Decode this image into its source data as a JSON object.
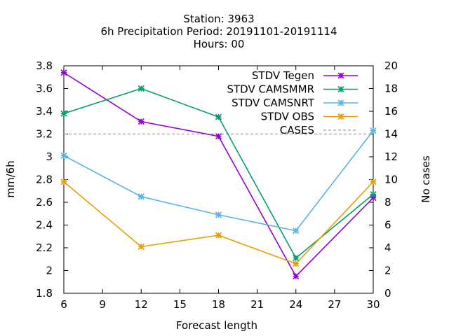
{
  "chart_data": {
    "type": "line",
    "title_lines": [
      "Station:      3963",
      "6h Precipitation   Period: 20191101-20191114",
      "Hours:  00"
    ],
    "xlabel": "Forecast length",
    "ylabel": "mm/6h",
    "y2label": "No cases",
    "x_ticks": [
      6,
      9,
      12,
      15,
      18,
      21,
      24,
      27,
      30
    ],
    "y_ticks": [
      "1.8",
      "2",
      "2.2",
      "2.4",
      "2.6",
      "2.8",
      "3",
      "3.2",
      "3.4",
      "3.6",
      "3.8"
    ],
    "y2_ticks": [
      "0",
      "2",
      "4",
      "6",
      "8",
      "10",
      "12",
      "14",
      "16",
      "18",
      "20"
    ],
    "xlim": [
      6,
      30
    ],
    "ylim": [
      1.8,
      3.8
    ],
    "y2lim": [
      0,
      20
    ],
    "x": [
      6,
      12,
      18,
      24,
      30
    ],
    "series": [
      {
        "name": "STDV Tegen",
        "color": "#9400d3",
        "values": [
          3.74,
          3.31,
          3.18,
          1.95,
          2.64
        ]
      },
      {
        "name": "STDV CAMSMMR",
        "color": "#009e73",
        "values": [
          3.38,
          3.6,
          3.35,
          2.11,
          2.67
        ]
      },
      {
        "name": "STDV CAMSNRT",
        "color": "#56b4e9",
        "values": [
          3.01,
          2.65,
          2.49,
          2.35,
          3.23
        ]
      },
      {
        "name": "STDV OBS",
        "color": "#e69f00",
        "values": [
          2.78,
          2.21,
          2.31,
          2.06,
          2.78
        ]
      }
    ],
    "cases": {
      "name": "CASES",
      "color": "#a0a0a0",
      "value": 14
    }
  }
}
